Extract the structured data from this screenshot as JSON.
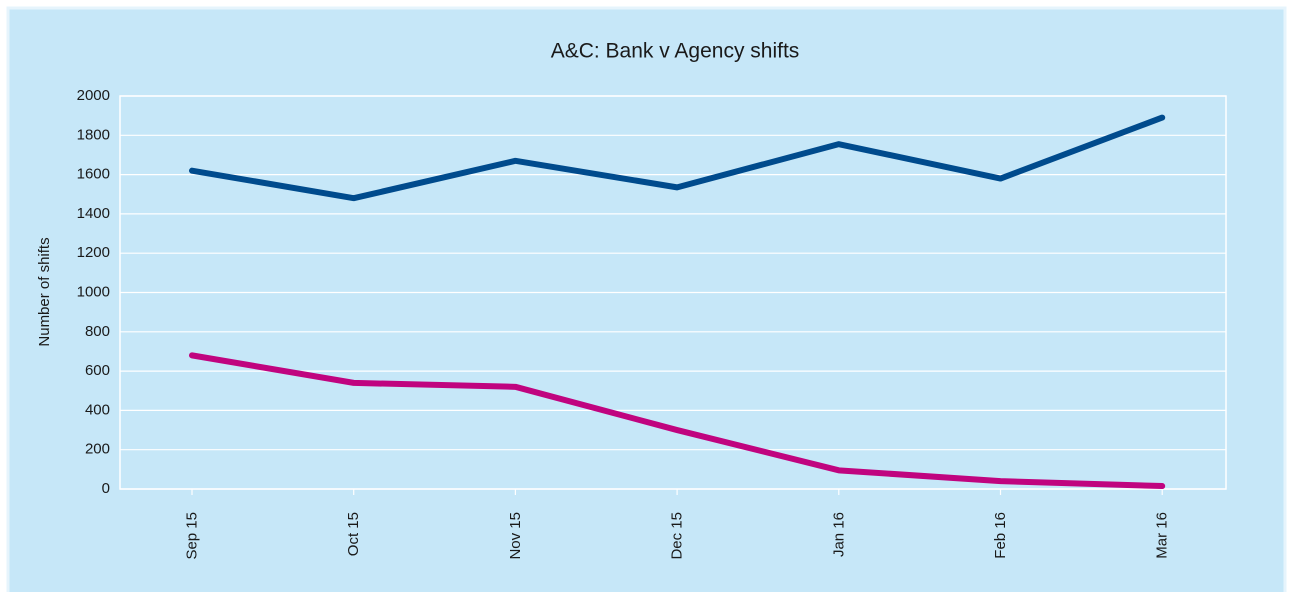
{
  "chart_data": {
    "type": "line",
    "title": "A&C: Bank v Agency shifts",
    "ylabel": "Number of shifts",
    "categories": [
      "Sep 15",
      "Oct 15",
      "Nov 15",
      "Dec 15",
      "Jan 16",
      "Feb 16",
      "Mar 16"
    ],
    "series": [
      {
        "color": "#004b8d",
        "values": [
          1620,
          1480,
          1670,
          1535,
          1755,
          1580,
          1890
        ]
      },
      {
        "color": "#c0047f",
        "values": [
          680,
          540,
          520,
          300,
          95,
          40,
          15
        ]
      }
    ],
    "ylim": [
      0,
      2000
    ],
    "yticks": [
      0,
      200,
      400,
      600,
      800,
      1000,
      1200,
      1400,
      1600,
      1800,
      2000
    ],
    "grid": true
  }
}
